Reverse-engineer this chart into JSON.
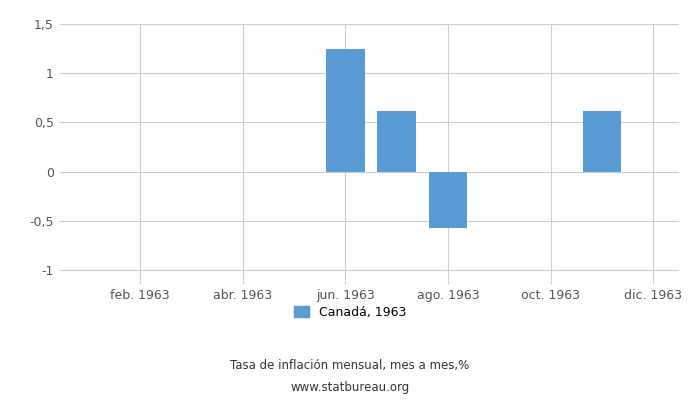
{
  "months": [
    1,
    2,
    3,
    4,
    5,
    6,
    7,
    8,
    9,
    10,
    11,
    12
  ],
  "values": [
    0,
    0,
    0,
    0,
    0,
    1.25,
    0.62,
    -0.57,
    0.0,
    0,
    0.62,
    0
  ],
  "bar_color": "#5b9bd5",
  "xlim": [
    0.5,
    12.5
  ],
  "ylim": [
    -1.1,
    1.5
  ],
  "yticks": [
    -1.0,
    -0.5,
    0.0,
    0.5,
    1.0,
    1.5
  ],
  "ytick_labels": [
    "-1",
    "-0,5",
    "0",
    "0,5",
    "1",
    "1,5"
  ],
  "xtick_positions": [
    2,
    4,
    6,
    8,
    10,
    12
  ],
  "xtick_labels": [
    "feb. 1963",
    "abr. 1963",
    "jun. 1963",
    "ago. 1963",
    "oct. 1963",
    "dic. 1963"
  ],
  "legend_label": "Canadá, 1963",
  "subtitle": "Tasa de inflación mensual, mes a mes,%",
  "website": "www.statbureau.org",
  "background_color": "#ffffff",
  "grid_color": "#cccccc",
  "bar_width": 0.75,
  "tick_color": "#555555",
  "label_color": "#333333"
}
